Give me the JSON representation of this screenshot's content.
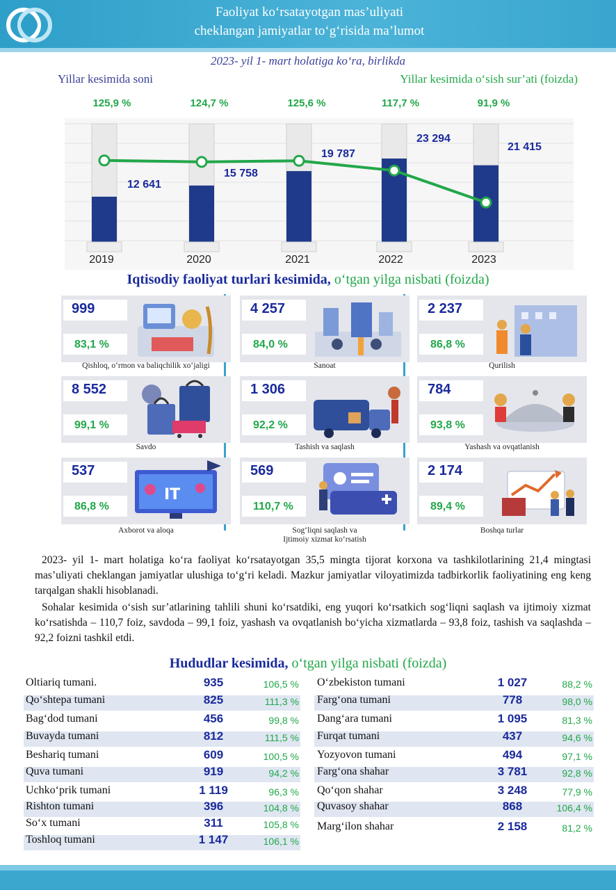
{
  "header": {
    "title_line1": "Faoliyat ko‘rsatayotgan mas’uliyati",
    "title_line2": "cheklangan jamiyatlar to‘g‘risida ma’lumot"
  },
  "subtitle": "2023- yil 1- mart holatiga ko‘ra, birlikda",
  "chart_labels": {
    "left": "Yillar kesimida soni",
    "right": "Yillar kesimida o‘sish sur’ati (foizda)"
  },
  "chart_data": {
    "type": "bar",
    "categories": [
      "2019",
      "2020",
      "2021",
      "2022",
      "2023"
    ],
    "series": [
      {
        "values": [
          12641,
          15758,
          19787,
          23294,
          21415
        ],
        "display": [
          "12 641",
          "15 758",
          "19 787",
          "23 294",
          "21 415"
        ]
      },
      {
        "values": [
          125.9,
          124.7,
          125.6,
          117.7,
          91.9
        ],
        "display": [
          "125,9 %",
          "124,7 %",
          "125,6 %",
          "117,7 %",
          "91,9 %"
        ]
      }
    ],
    "bar_color": "#1f3a8a",
    "line_color": "#22a74a"
  },
  "sectors_title": {
    "bold": "Iqtisodiy faoliyat turlari kesimida,",
    "rest": " o‘tgan yilga nisbati (foizda)"
  },
  "sectors": [
    {
      "count": "999",
      "pct": "83,1 %",
      "label": "Qishloq, o‘rmon va baliqchilik xo‘jaligi",
      "icon": "agriculture-icon"
    },
    {
      "count": "4 257",
      "pct": "84,0 %",
      "label": "Sanoat",
      "icon": "industry-icon"
    },
    {
      "count": "2 237",
      "pct": "86,8 %",
      "label": "Qurilish",
      "icon": "construction-icon"
    },
    {
      "count": "8 552",
      "pct": "99,1 %",
      "label": "Savdo",
      "icon": "shopping-icon"
    },
    {
      "count": "1 306",
      "pct": "92,2 %",
      "label": "Tashish va saqlash",
      "icon": "delivery-truck-icon"
    },
    {
      "count": "784",
      "pct": "93,8 %",
      "label": "Yashash va ovqatlanish",
      "icon": "food-service-icon"
    },
    {
      "count": "537",
      "pct": "86,8 %",
      "label": "Axborot va aloqa",
      "icon": "it-monitor-icon"
    },
    {
      "count": "569",
      "pct": "110,7 %",
      "label": "Sog‘liqni saqlash va",
      "label2": "Ijtimoiy xizmat ko‘rsatish",
      "icon": "health-card-icon"
    },
    {
      "count": "2 174",
      "pct": "89,4 %",
      "label": "Boshqa turlar",
      "icon": "business-chart-icon"
    }
  ],
  "paragraphs": [
    "2023- yil 1- mart holatiga ko‘ra faoliyat ko‘rsatayotgan 35,5 mingta tijorat korxona va tashkilotlarining 21,4 mingtasi mas’uliyati cheklangan jamiyatlar ulushiga to‘g‘ri keladi. Mazkur jamiyatlar viloyatimizda tadbirkorlik faoliyatining eng keng tarqalgan shakli hisoblanadi.",
    "Sohalar kesimida o‘sish sur’atlarining tahlili shuni ko‘rsatdiki, eng yuqori ko‘rsatkich sog‘liqni saqlash va ijtimoiy xizmat ko‘rsatishda – 110,7 foiz, savdoda – 99,1 foiz, yashash va ovqatlanish bo‘yicha xizmatlarda – 93,8 foiz, tashish va saqlashda – 92,2 foizni tashkil etdi."
  ],
  "regions_title": {
    "bold": "Hududlar kesimida,",
    "rest": " o‘tgan yilga nisbati (foizda)"
  },
  "regions_left": [
    {
      "name": "Oltiariq tumani.",
      "count": "935",
      "pct": "106,5 %"
    },
    {
      "name": "Qo‘shtepa tumani",
      "count": "825",
      "pct": "111,3 %"
    },
    {
      "name": "Bag‘dod tumani",
      "count": "456",
      "pct": "99,8 %"
    },
    {
      "name": "Buvayda tumani",
      "count": "812",
      "pct": "111,5 %"
    },
    {
      "name": "Beshariq tumani",
      "count": "609",
      "pct": "100,5 %"
    },
    {
      "name": "Quva tumani",
      "count": "919",
      "pct": "94,2 %"
    },
    {
      "name": "Uchko‘prik tumani",
      "count": "1 119",
      "pct": "96,3 %"
    },
    {
      "name": "Rishton tumani",
      "count": "396",
      "pct": "104,8 %"
    },
    {
      "name": "So‘x tumani",
      "count": "311",
      "pct": "105,8 %"
    },
    {
      "name": "Toshloq tumani",
      "count": "1 147",
      "pct": "106,1 %"
    }
  ],
  "regions_right": [
    {
      "name": "O‘zbekiston tumani",
      "count": "1 027",
      "pct": "88,2 %"
    },
    {
      "name": "Farg‘ona tumani",
      "count": "778",
      "pct": "98,0 %"
    },
    {
      "name": "Dang‘ara tumani",
      "count": "1 095",
      "pct": "81,3 %"
    },
    {
      "name": "Furqat tumani",
      "count": "437",
      "pct": "94,6 %"
    },
    {
      "name": "Yozyovon tumani",
      "count": "494",
      "pct": "97,1 %"
    },
    {
      "name": "Farg‘ona shahar",
      "count": "3 781",
      "pct": "92,8 %"
    },
    {
      "name": "Qo‘qon shahar",
      "count": "3 248",
      "pct": "77,9 %"
    },
    {
      "name": "Quvasoy shahar",
      "count": "868",
      "pct": "106,4 %"
    },
    {
      "name": "Marg‘ilon shahar",
      "count": "2 158",
      "pct": "81,2 %"
    }
  ]
}
